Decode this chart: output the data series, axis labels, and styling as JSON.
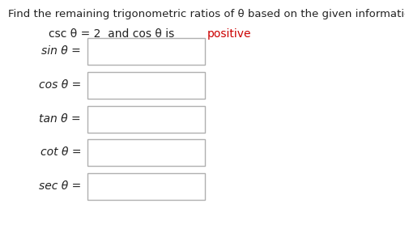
{
  "title": "Find the remaining trigonometric ratios of θ based on the given information.",
  "subtitle_plain": "csc θ = 2  and cos θ is ",
  "subtitle_colored": "positive",
  "subtitle_color": "#cc0000",
  "labels": [
    "sin θ =",
    "cos θ =",
    "tan θ =",
    "cot θ =",
    "sec θ ="
  ],
  "bg_color": "#ffffff",
  "text_color": "#222222",
  "title_fontsize": 9.5,
  "label_fontsize": 10.0,
  "subtitle_fontsize": 10.0
}
